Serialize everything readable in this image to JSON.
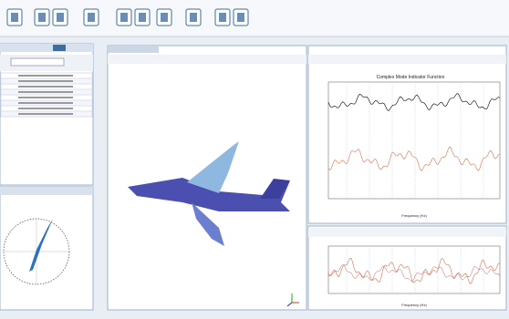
{
  "cmif_plot": {
    "title": "Complex Mode Indicator Function",
    "x_label": "Frequency (Hz)"
  },
  "frf_plot": {
    "x_label": "Frequency (Hz)"
  }
}
